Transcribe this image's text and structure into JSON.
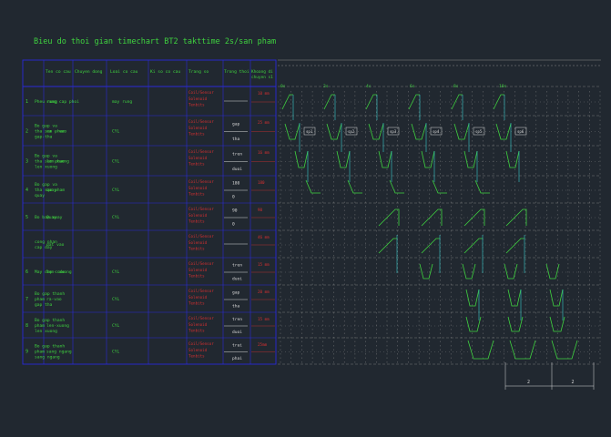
{
  "title": "Bieu do thoi gian timechart BT2 takttime 2s/san pham",
  "headers": [
    "Ten co cau",
    "Chuyen dong",
    "Loai co cau",
    "Ki so co cau",
    "Trang so",
    "Trong thoi",
    "Khoang di chuyen s1"
  ],
  "time_ticks": [
    "0s",
    "2s",
    "4s",
    "6s",
    "8s",
    "10s"
  ],
  "rows": [
    {
      "idx": "1",
      "name": [
        "Pheu rung"
      ],
      "motion": "rung cap phoi",
      "type": "may rung",
      "signals": [
        "Coil/Sensor",
        "Solenoid",
        "Tenbits"
      ],
      "states": [
        ""
      ],
      "move": "10 mm"
    },
    {
      "idx": "2",
      "name": [
        "Bo gap va",
        "tha san pham",
        "gap-tha"
      ],
      "motion": "ra - vao",
      "type": "CYL",
      "signals": [
        "Coil/Sensor",
        "Solenoid",
        "Tenbits"
      ],
      "states": [
        "gap",
        "tha"
      ],
      "move": "25 mm"
    },
    {
      "idx": "3",
      "name": [
        "Bo gap va",
        "tha san pham",
        "len xuong"
      ],
      "motion": "len-xuong",
      "type": "CYL",
      "signals": [
        "Coil/Sensor",
        "Solenoid",
        "Tenbits"
      ],
      "states": [
        "tren",
        "duoi"
      ],
      "move": "16 mm"
    },
    {
      "idx": "4",
      "name": [
        "Bo gap va",
        "tha san pham",
        "quay"
      ],
      "motion": "quay",
      "type": "CYL",
      "signals": [
        "Coil/Sensor",
        "Solenoid",
        "Tenbits"
      ],
      "states": [
        "180",
        "0"
      ],
      "move": "180"
    },
    {
      "idx": "5",
      "name": [
        "Bo ban xoay"
      ],
      "motion": "Quay",
      "type": "CYL",
      "signals": [
        "Coil/Sensor",
        "Solenoid",
        "Tenbits"
      ],
      "states": [
        "90",
        "0"
      ],
      "move": "90"
    },
    {
      "idx": "",
      "name": [
        "cong nhan",
        "cap day"
      ],
      "motion": "dat vao",
      "type": "",
      "signals": [
        "Coil/Sensor",
        "Solenoid",
        "Tenbits"
      ],
      "states": [
        ""
      ],
      "move": "46 mm"
    },
    {
      "idx": "6",
      "name": [
        "May dap code"
      ],
      "motion": "len- xuong",
      "type": "CYL",
      "signals": [
        "Coil/Sensor",
        "Solenoid",
        "Tenbits"
      ],
      "states": [
        "tren",
        "duoi"
      ],
      "move": "15 mm"
    },
    {
      "idx": "7",
      "name": [
        "Bo gap thanh",
        "pham",
        "gap tha"
      ],
      "motion": "ra-vao",
      "type": "CYL",
      "signals": [
        "Coil/Sensor",
        "Solenoid",
        "Tenbits"
      ],
      "states": [
        "gap",
        "tha"
      ],
      "move": "20 mm"
    },
    {
      "idx": "8",
      "name": [
        "Bo gap thanh",
        "pham",
        "len xuong"
      ],
      "motion": "len-xuong",
      "type": "CYL",
      "signals": [
        "Coil/Sensor",
        "Solenoid",
        "Tenbits"
      ],
      "states": [
        "tren",
        "duoi"
      ],
      "move": "15 mm"
    },
    {
      "idx": "9",
      "name": [
        "Bo gap thanh",
        "pham",
        "sang ngang"
      ],
      "motion": "sang ngang",
      "type": "CYL",
      "signals": [
        "Coil/Sensor",
        "Solenoid",
        "Tenbits"
      ],
      "states": [
        "trai",
        "phai"
      ],
      "move": "25mm"
    }
  ],
  "box_labels": [
    "sp1",
    "sp2",
    "sp3",
    "sp4",
    "sp5",
    "sp6"
  ],
  "dimensions": [
    "2",
    "2"
  ],
  "colors": {
    "background": "#212830",
    "table_border": "#2a2ad8",
    "grid": "#8a8a8a",
    "text": "#3fd23f",
    "signal_text": "#d83030",
    "wave": "#37c9c9",
    "white": "#d8d8d8"
  }
}
